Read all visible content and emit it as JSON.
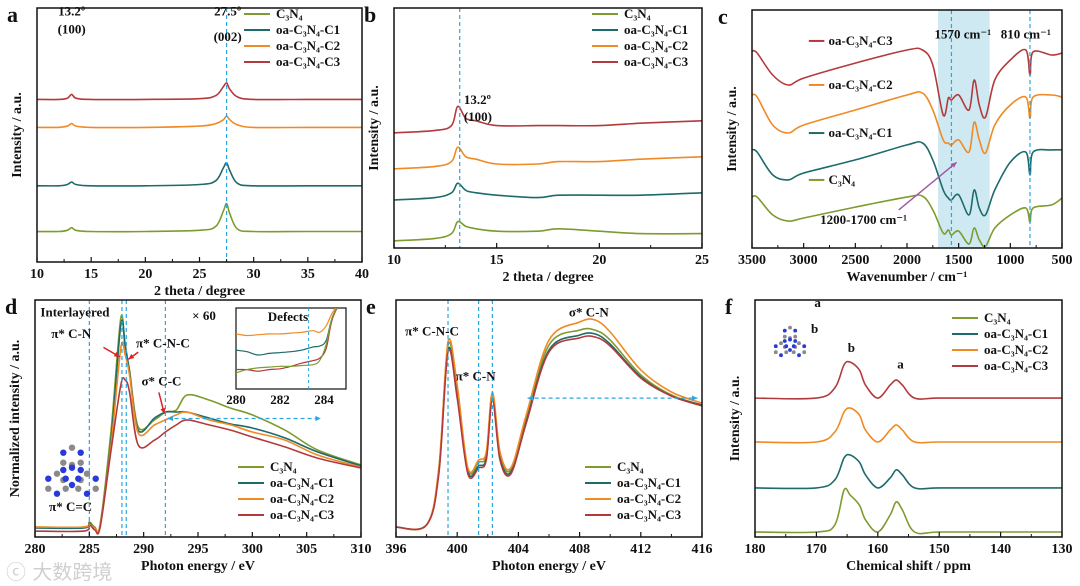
{
  "colors": {
    "C3N4": "#7d9b2f",
    "C1": "#1d6b6a",
    "C2": "#f08a24",
    "C3": "#b33a3c",
    "guide": "#2aa6e0",
    "arrow": "#e02020",
    "purple": "#a05aa8",
    "shade": "#cfe9f2"
  },
  "watermark": "大数跨境",
  "chart_data": [
    {
      "panel": "a",
      "type": "line",
      "xlabel": "2 theta / degree",
      "ylabel": "Intensity / a.u.",
      "xlim": [
        10,
        40
      ],
      "ylim": [
        0,
        100
      ],
      "xticks": [
        10,
        15,
        20,
        25,
        30,
        35,
        40
      ],
      "legend_position": "top-right",
      "guides": [
        27.5
      ],
      "annotations": [
        {
          "text": "13.2º",
          "x": 13.2,
          "y": 97
        },
        {
          "text": "(100)",
          "x": 13.2,
          "y": 90
        },
        {
          "text": "27.5º",
          "x": 27.6,
          "y": 97
        },
        {
          "text": "(002)",
          "x": 27.6,
          "y": 87
        }
      ],
      "x": [
        10,
        12,
        12.8,
        13.2,
        13.6,
        15,
        20,
        25,
        26.5,
        27.2,
        27.5,
        27.8,
        28.5,
        30,
        35,
        40
      ],
      "series": [
        {
          "key": "C3N4",
          "name": "C₃N₄",
          "values": [
            12,
            12,
            12.5,
            13.5,
            12.5,
            12,
            12,
            12.5,
            14,
            20,
            23,
            19,
            13,
            12,
            12,
            12
          ]
        },
        {
          "key": "C1",
          "name": "oa-C₃N₄-C1",
          "values": [
            30,
            30,
            30.5,
            31.5,
            30.5,
            30,
            30,
            30.5,
            32,
            37,
            39,
            36,
            31,
            30,
            30,
            30
          ]
        },
        {
          "key": "C2",
          "name": "oa-C₃N₄-C2",
          "values": [
            53,
            53,
            53.5,
            54.5,
            53.5,
            53,
            53,
            53.5,
            54.5,
            56,
            57.5,
            56,
            54,
            53,
            53,
            53
          ]
        },
        {
          "key": "C3",
          "name": "oa-C₃N₄-C3",
          "values": [
            64,
            64,
            64.5,
            66,
            64.5,
            64,
            64,
            64.3,
            65.5,
            69,
            70.5,
            68,
            65,
            64,
            64,
            64
          ]
        }
      ]
    },
    {
      "panel": "b",
      "type": "line",
      "xlabel": "2 theta / degree",
      "ylabel": "Intensity / a.u.",
      "xlim": [
        10,
        25
      ],
      "ylim": [
        0,
        100
      ],
      "xticks": [
        10,
        15,
        20,
        25
      ],
      "legend_position": "top-right",
      "guides": [
        13.2
      ],
      "annotations": [
        {
          "text": "13.2º",
          "x": 13.4,
          "y": 60,
          "anchor": "start"
        },
        {
          "text": "(100)",
          "x": 13.4,
          "y": 53,
          "anchor": "start"
        }
      ],
      "x": [
        10,
        12,
        12.8,
        13.1,
        13.5,
        14,
        15,
        17,
        18,
        20,
        22,
        25
      ],
      "series": [
        {
          "key": "C3N4",
          "name": "C₃N₄",
          "values": [
            3,
            4,
            6,
            11,
            9,
            8,
            7,
            7,
            8,
            7,
            6,
            6
          ]
        },
        {
          "key": "C1",
          "name": "oa-C₃N₄-C1",
          "values": [
            20,
            21,
            23,
            27,
            24,
            23,
            22,
            21,
            22,
            22,
            22,
            23
          ]
        },
        {
          "key": "C2",
          "name": "oa-C₃N₄-C2",
          "values": [
            33,
            34,
            36,
            42,
            38,
            37,
            35,
            35,
            36,
            36,
            37,
            38
          ]
        },
        {
          "key": "C3",
          "name": "oa-C₃N₄-C3",
          "values": [
            48,
            49,
            51,
            59,
            54,
            53,
            51,
            51,
            51,
            51,
            52,
            53
          ]
        }
      ]
    },
    {
      "panel": "c",
      "type": "line",
      "xlabel": "Wavenumber / cm⁻¹",
      "ylabel": "Intensity / a.u.",
      "xlim": [
        3500,
        500
      ],
      "ylim": [
        0,
        100
      ],
      "xticks": [
        3500,
        3000,
        2500,
        2000,
        1500,
        1000,
        500
      ],
      "legend_position": "inline",
      "shaded_range": [
        1700,
        1200
      ],
      "guides": [
        1570,
        810
      ],
      "annotations": [
        {
          "text": "1570 cm⁻¹",
          "x": 1460,
          "y": 88
        },
        {
          "text": "810 cm⁻¹",
          "x": 850,
          "y": 88
        },
        {
          "text": "1200-1700 cm⁻¹",
          "x": 2420,
          "y": 10
        }
      ],
      "arrow": {
        "from": [
          2080,
          16
        ],
        "to": [
          1520,
          36
        ]
      },
      "inline_labels": [
        {
          "key": "C3",
          "y": 87
        },
        {
          "key": "C2",
          "y": 68.5
        },
        {
          "key": "C1",
          "y": 48.3
        },
        {
          "key": "C3N4",
          "y": 28.6
        }
      ],
      "x": [
        3500,
        3450,
        3300,
        3150,
        3000,
        2500,
        2000,
        1850,
        1750,
        1650,
        1600,
        1570,
        1500,
        1400,
        1350,
        1300,
        1240,
        1150,
        1000,
        850,
        810,
        780,
        600,
        500
      ],
      "series": [
        {
          "key": "C3N4",
          "name": "C₃N₄",
          "values": [
            21.4,
            21.4,
            13.9,
            11.3,
            12.6,
            17.2,
            21.4,
            21.8,
            16,
            6.3,
            7.6,
            5.5,
            7.1,
            1.7,
            8.4,
            3.4,
            0.8,
            8.4,
            13.9,
            16.8,
            10.9,
            16.8,
            18.1,
            21
          ]
        },
        {
          "key": "C1",
          "name": "oa-C₃N₄-C1",
          "values": [
            41.2,
            40.3,
            30.7,
            28.6,
            31.5,
            37,
            43.3,
            44.1,
            37,
            24.4,
            21,
            20.2,
            22.3,
            13.9,
            24.4,
            16.8,
            13.9,
            24.4,
            36.1,
            40.3,
            30.7,
            40.3,
            41.2,
            41.2
          ]
        },
        {
          "key": "C2",
          "name": "oa-C₃N₄-C2",
          "values": [
            64.3,
            63.4,
            51.7,
            48.3,
            51.7,
            58,
            64.3,
            65.1,
            58,
            45.4,
            44.1,
            43.3,
            45.4,
            40.3,
            52.9,
            45.4,
            39.9,
            51.7,
            60.1,
            63.4,
            54.6,
            63.4,
            64.3,
            63.4
          ]
        },
        {
          "key": "C3",
          "name": "oa-C₃N₄-C3",
          "values": [
            82.8,
            81.9,
            72.7,
            68.5,
            71.4,
            77.7,
            83.2,
            83.2,
            76.9,
            55.9,
            63,
            62.2,
            64.3,
            58,
            70.6,
            60.1,
            55,
            70.6,
            79,
            83.2,
            72.7,
            82.4,
            81.1,
            81.9
          ]
        }
      ]
    },
    {
      "panel": "d",
      "type": "line",
      "xlabel": "Photon energy / eV",
      "ylabel": "Normalized intensity / a.u.",
      "xlim": [
        280,
        310
      ],
      "ylim": [
        0,
        100
      ],
      "xticks": [
        280,
        285,
        290,
        295,
        300,
        305,
        310
      ],
      "legend_position": "bottom-right",
      "guides": [
        285,
        288,
        288.4,
        292
      ],
      "range_arrow": {
        "from": 292.2,
        "to": 306.3,
        "y": 50
      },
      "annotations": [
        {
          "text": "Interlayered",
          "x": 280.5,
          "y": 93,
          "anchor": "start"
        },
        {
          "text": "π* C-N",
          "x": 281.5,
          "y": 84,
          "anchor": "start"
        },
        {
          "text": "π* C-N-C",
          "x": 289.3,
          "y": 80,
          "anchor": "start"
        },
        {
          "text": "σ* C-C",
          "x": 289.8,
          "y": 64,
          "anchor": "start"
        },
        {
          "text": "π* C=C",
          "x": 281.3,
          "y": 11,
          "anchor": "start"
        }
      ],
      "red_arrows": [
        {
          "from": [
            286.3,
            80
          ],
          "to": [
            287.8,
            76
          ]
        },
        {
          "from": [
            289.5,
            78
          ],
          "to": [
            288.6,
            75
          ]
        },
        {
          "from": [
            291.4,
            61
          ],
          "to": [
            291.9,
            52
          ]
        }
      ],
      "x": [
        280,
        284.5,
        285,
        285.5,
        286,
        287,
        287.9,
        288.3,
        288.7,
        289.5,
        291,
        292,
        293,
        294,
        296,
        298,
        300,
        303,
        306,
        310
      ],
      "series": [
        {
          "key": "C3N4",
          "name": "C₃N₄",
          "values": [
            4.2,
            4.2,
            6.3,
            4.2,
            5.5,
            45.1,
            92.4,
            78.9,
            70.5,
            46.4,
            49.4,
            52.7,
            53.6,
            59.9,
            57.8,
            54.4,
            51.5,
            45.1,
            36.7,
            30.4
          ]
        },
        {
          "key": "C1",
          "name": "oa-C₃N₄-C1",
          "values": [
            3.8,
            3.8,
            5.9,
            3.8,
            5.1,
            40.9,
            89.5,
            81,
            69.6,
            45.1,
            50.2,
            52.7,
            52.7,
            52.7,
            50.2,
            47.7,
            46,
            41.8,
            35.9,
            30
          ]
        },
        {
          "key": "C2",
          "name": "oa-C₃N₄-C2",
          "values": [
            4.2,
            4.2,
            5.5,
            3.8,
            5.1,
            38.8,
            79.7,
            76.8,
            68.4,
            43.9,
            47.3,
            49.4,
            51.5,
            52.7,
            49.4,
            47.3,
            44.3,
            40.9,
            34.6,
            29.5
          ]
        },
        {
          "key": "C3",
          "name": "oa-C₃N₄-C3",
          "values": [
            2.5,
            2.5,
            5.1,
            3,
            4.2,
            36.7,
            64.1,
            66.2,
            61.2,
            38.8,
            40.9,
            44.3,
            47.3,
            49.4,
            47.3,
            45.1,
            42.2,
            38,
            33.3,
            29.1
          ]
        }
      ],
      "inset": {
        "title": "Defects",
        "scale_label": "× 60",
        "xlim": [
          280,
          285
        ],
        "ylim": [
          0,
          100
        ],
        "xticks": [
          280,
          282,
          284
        ],
        "guides": [
          283.3
        ],
        "x": [
          280,
          280.5,
          281,
          281.5,
          282,
          282.5,
          283,
          283.5,
          283.8,
          284.1,
          284.4,
          285
        ],
        "series": [
          {
            "key": "C2",
            "values": [
              68,
              66,
              67,
              68,
              68,
              69,
              70,
              72,
              70,
              78,
              95,
              120
            ]
          },
          {
            "key": "C1",
            "values": [
              48,
              46,
              42,
              44,
              45,
              46,
              48,
              52,
              53,
              60,
              90,
              120
            ]
          },
          {
            "key": "C3",
            "values": [
              24,
              24,
              22,
              24,
              25,
              28,
              32,
              35,
              38,
              50,
              88,
              120
            ]
          },
          {
            "key": "C3N4",
            "values": [
              20,
              24,
              26,
              27,
              28,
              28,
              29,
              30,
              35,
              55,
              90,
              120
            ]
          }
        ]
      }
    },
    {
      "panel": "e",
      "type": "line",
      "xlabel": "Photon energy / eV",
      "ylabel": "",
      "xlim": [
        396,
        416
      ],
      "ylim": [
        0,
        100
      ],
      "xticks": [
        396,
        400,
        404,
        408,
        412,
        416
      ],
      "legend_position": "bottom-right",
      "guides": [
        399.4,
        401.4,
        402.3
      ],
      "range_arrow": {
        "from": 404.6,
        "to": 415.7,
        "y": 58.6
      },
      "annotations": [
        {
          "text": "π* C-N-C",
          "x": 396.6,
          "y": 85,
          "anchor": "start"
        },
        {
          "text": "π* C-N",
          "x": 399.9,
          "y": 66,
          "anchor": "start"
        },
        {
          "text": "σ* C-N",
          "x": 407.3,
          "y": 93,
          "anchor": "start"
        }
      ],
      "x": [
        396,
        398,
        398.8,
        399.4,
        400,
        400.7,
        401.4,
        401.9,
        402.3,
        402.8,
        403.5,
        404.5,
        406,
        408,
        409,
        410,
        412,
        414,
        416
      ],
      "series": [
        {
          "key": "C3N4",
          "name": "C₃N₄",
          "values": [
            4.2,
            5.1,
            28.3,
            81,
            62,
            28.3,
            31.6,
            34.6,
            59.9,
            34.6,
            28.3,
            49.4,
            81,
            87.3,
            87.3,
            83.1,
            68.4,
            59.9,
            55.7
          ]
        },
        {
          "key": "C1",
          "name": "oa-C₃N₄-C1",
          "values": [
            4.2,
            5.1,
            27.4,
            78.9,
            59.5,
            27.4,
            30,
            33.3,
            58.6,
            33.3,
            27.4,
            48.5,
            78.9,
            85.2,
            85.7,
            81.4,
            67.5,
            59.5,
            55.7
          ]
        },
        {
          "key": "C2",
          "name": "oa-C₃N₄-C2",
          "values": [
            4.2,
            5.1,
            29.1,
            82.3,
            64.1,
            29.1,
            32.5,
            35.9,
            61.2,
            35.9,
            29.1,
            51.1,
            83.1,
            90.7,
            91.6,
            86.5,
            70.5,
            61.2,
            56.5
          ]
        },
        {
          "key": "C3",
          "name": "oa-C₃N₄-C3",
          "values": [
            4.2,
            5.1,
            26.6,
            78.1,
            58.6,
            26.6,
            29.1,
            32.5,
            57.8,
            32.5,
            26.6,
            47.7,
            78.1,
            84,
            84.4,
            80.6,
            67.1,
            59.5,
            55.3
          ]
        }
      ]
    },
    {
      "panel": "f",
      "type": "line",
      "xlabel": "Chemical shift / ppm",
      "ylabel": "Intensity / a.u.",
      "xlim": [
        180,
        130
      ],
      "ylim": [
        0,
        100
      ],
      "xticks": [
        180,
        170,
        160,
        150,
        140,
        130
      ],
      "legend_position": "top-right",
      "guides": [],
      "annotations": [
        {
          "text": "b",
          "x": 164.3,
          "y": 78
        },
        {
          "text": "a",
          "x": 156.3,
          "y": 71
        },
        {
          "text": "a",
          "x": 169.8,
          "y": 97
        },
        {
          "text": "b",
          "x": 170.3,
          "y": 86
        }
      ],
      "x": [
        180,
        170,
        167,
        165.5,
        164.5,
        163,
        162,
        160,
        158,
        157,
        156,
        154,
        150,
        140,
        130
      ],
      "series": [
        {
          "key": "C3N4",
          "name": "C₃N₄",
          "values": [
            2.1,
            2.1,
            5.1,
            19.8,
            17.7,
            13.5,
            7.2,
            2.1,
            9.3,
            14.8,
            11.4,
            2.1,
            2.1,
            2.1,
            2.1
          ]
        },
        {
          "key": "C1",
          "name": "oa-C₃N₄-C1",
          "values": [
            20.7,
            20.7,
            24.1,
            33.3,
            34.6,
            31.6,
            26.2,
            20.7,
            24.9,
            28.3,
            26.2,
            20.7,
            20.7,
            20.7,
            20.7
          ]
        },
        {
          "key": "C2",
          "name": "oa-C₃N₄-C2",
          "values": [
            40.1,
            40.1,
            44.3,
            52.7,
            54.4,
            51.5,
            45.1,
            40.1,
            45.1,
            47.3,
            45.1,
            40.1,
            40.1,
            40.1,
            40.1
          ]
        },
        {
          "key": "C3",
          "name": "oa-C₃N₄-C3",
          "values": [
            58.6,
            58.6,
            62.9,
            72.6,
            73.8,
            70.5,
            64.1,
            58.6,
            64.1,
            66.2,
            64.1,
            58.6,
            58.6,
            58.6,
            58.6
          ]
        }
      ]
    }
  ]
}
